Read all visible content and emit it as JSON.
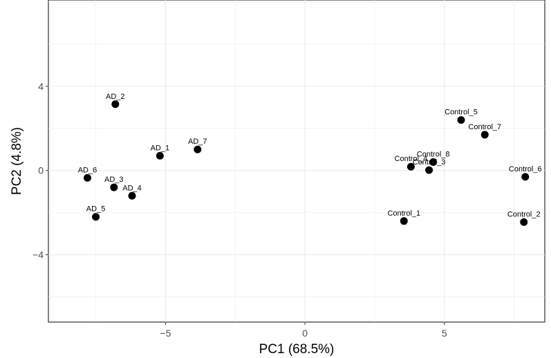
{
  "chart_data": {
    "type": "scatter",
    "title": "",
    "xlabel": "PC1 (68.5%)",
    "ylabel": "PC2 (4.8%)",
    "xlim": [
      -9.2,
      8.6
    ],
    "ylim": [
      -7.2,
      8.1
    ],
    "x_ticks": [
      -5,
      0,
      5
    ],
    "y_ticks": [
      -4,
      0,
      4
    ],
    "x_tick_labels": [
      "−5",
      "0",
      "5"
    ],
    "y_tick_labels": [
      "−4",
      "0",
      "4"
    ],
    "grid": true,
    "point_color": "#000000",
    "points": [
      {
        "label": "AD_2",
        "x": -6.8,
        "y": 3.15
      },
      {
        "label": "AD_1",
        "x": -5.2,
        "y": 0.7
      },
      {
        "label": "AD_7",
        "x": -3.85,
        "y": 1.0
      },
      {
        "label": "AD_6",
        "x": -7.8,
        "y": -0.35
      },
      {
        "label": "AD_3",
        "x": -6.85,
        "y": -0.8
      },
      {
        "label": "AD_4",
        "x": -6.2,
        "y": -1.2
      },
      {
        "label": "AD_5",
        "x": -7.5,
        "y": -2.2
      },
      {
        "label": "Control_5",
        "x": 5.6,
        "y": 2.4
      },
      {
        "label": "Control_7",
        "x": 6.45,
        "y": 1.7
      },
      {
        "label": "Control_8",
        "x": 4.6,
        "y": 0.4
      },
      {
        "label": "Control_4",
        "x": 3.8,
        "y": 0.18
      },
      {
        "label": "Control_3",
        "x": 4.45,
        "y": 0.02
      },
      {
        "label": "Control_6",
        "x": 7.9,
        "y": -0.3
      },
      {
        "label": "Control_1",
        "x": 3.55,
        "y": -2.4
      },
      {
        "label": "Control_2",
        "x": 7.85,
        "y": -2.45
      }
    ]
  }
}
